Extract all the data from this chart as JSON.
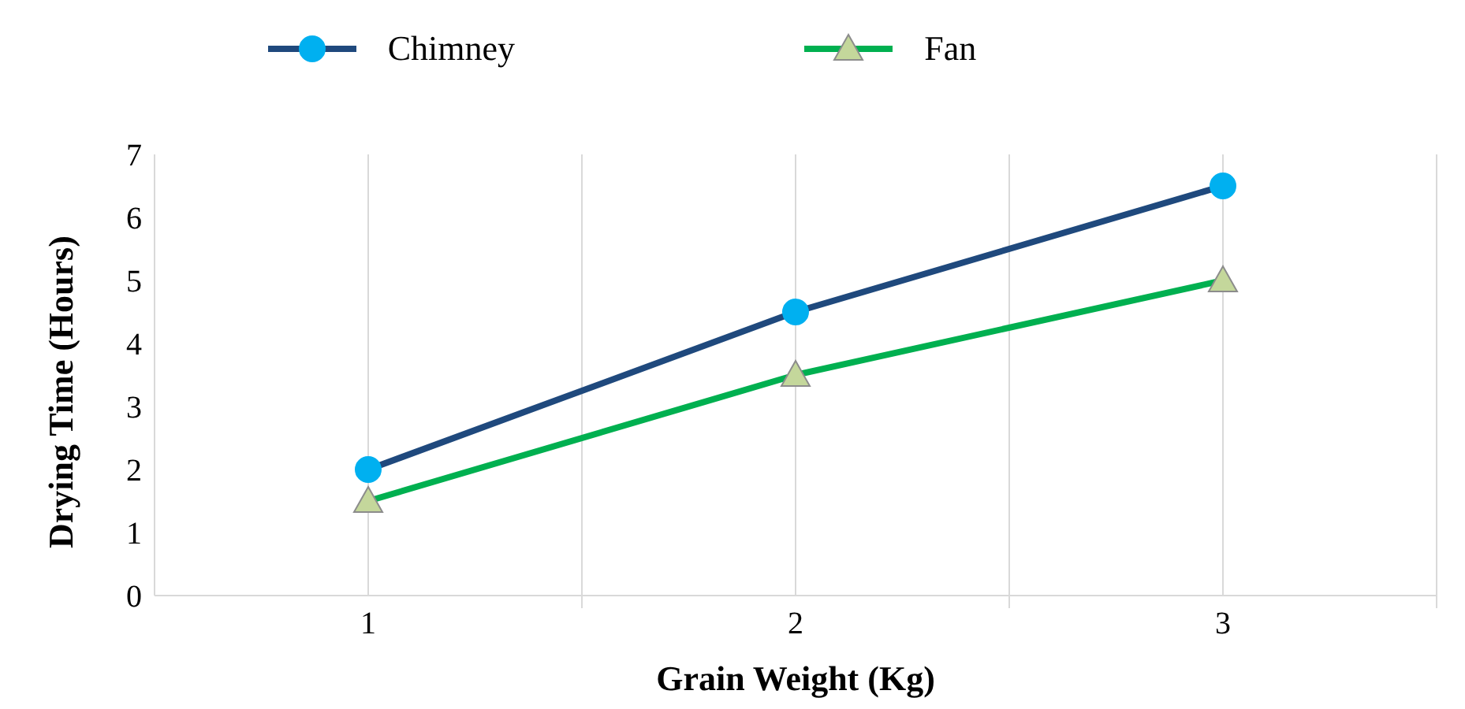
{
  "chart_data": {
    "type": "line",
    "xlabel": "Grain Weight (Kg)",
    "ylabel": "Drying Time (Hours)",
    "x": [
      1,
      2,
      3
    ],
    "series": [
      {
        "name": "Chimney",
        "color": "#1f497d",
        "colors": [
          "#00b0f0",
          "#00b0f0",
          "#00b0f0"
        ],
        "marker": "circle",
        "values": [
          2,
          4.5,
          6.5
        ]
      },
      {
        "name": "Fan",
        "color": "#00b050",
        "colors": [
          "#c4d79b",
          "#c4d79b",
          "#c4d79b"
        ],
        "marker": "triangle",
        "values": [
          1.5,
          3.5,
          5
        ]
      }
    ],
    "xlim": [
      0.5,
      3.5
    ],
    "xticks": [
      1,
      {
        "value": 1.5,
        "label": null
      },
      2,
      {
        "value": 2.5,
        "label": null
      },
      3,
      {
        "value": 3.5,
        "label": null
      }
    ],
    "ylim": [
      0,
      7
    ],
    "yticks": [
      0,
      1,
      2,
      3,
      4,
      5,
      6,
      7
    ],
    "grid": "x",
    "legend": "top"
  }
}
